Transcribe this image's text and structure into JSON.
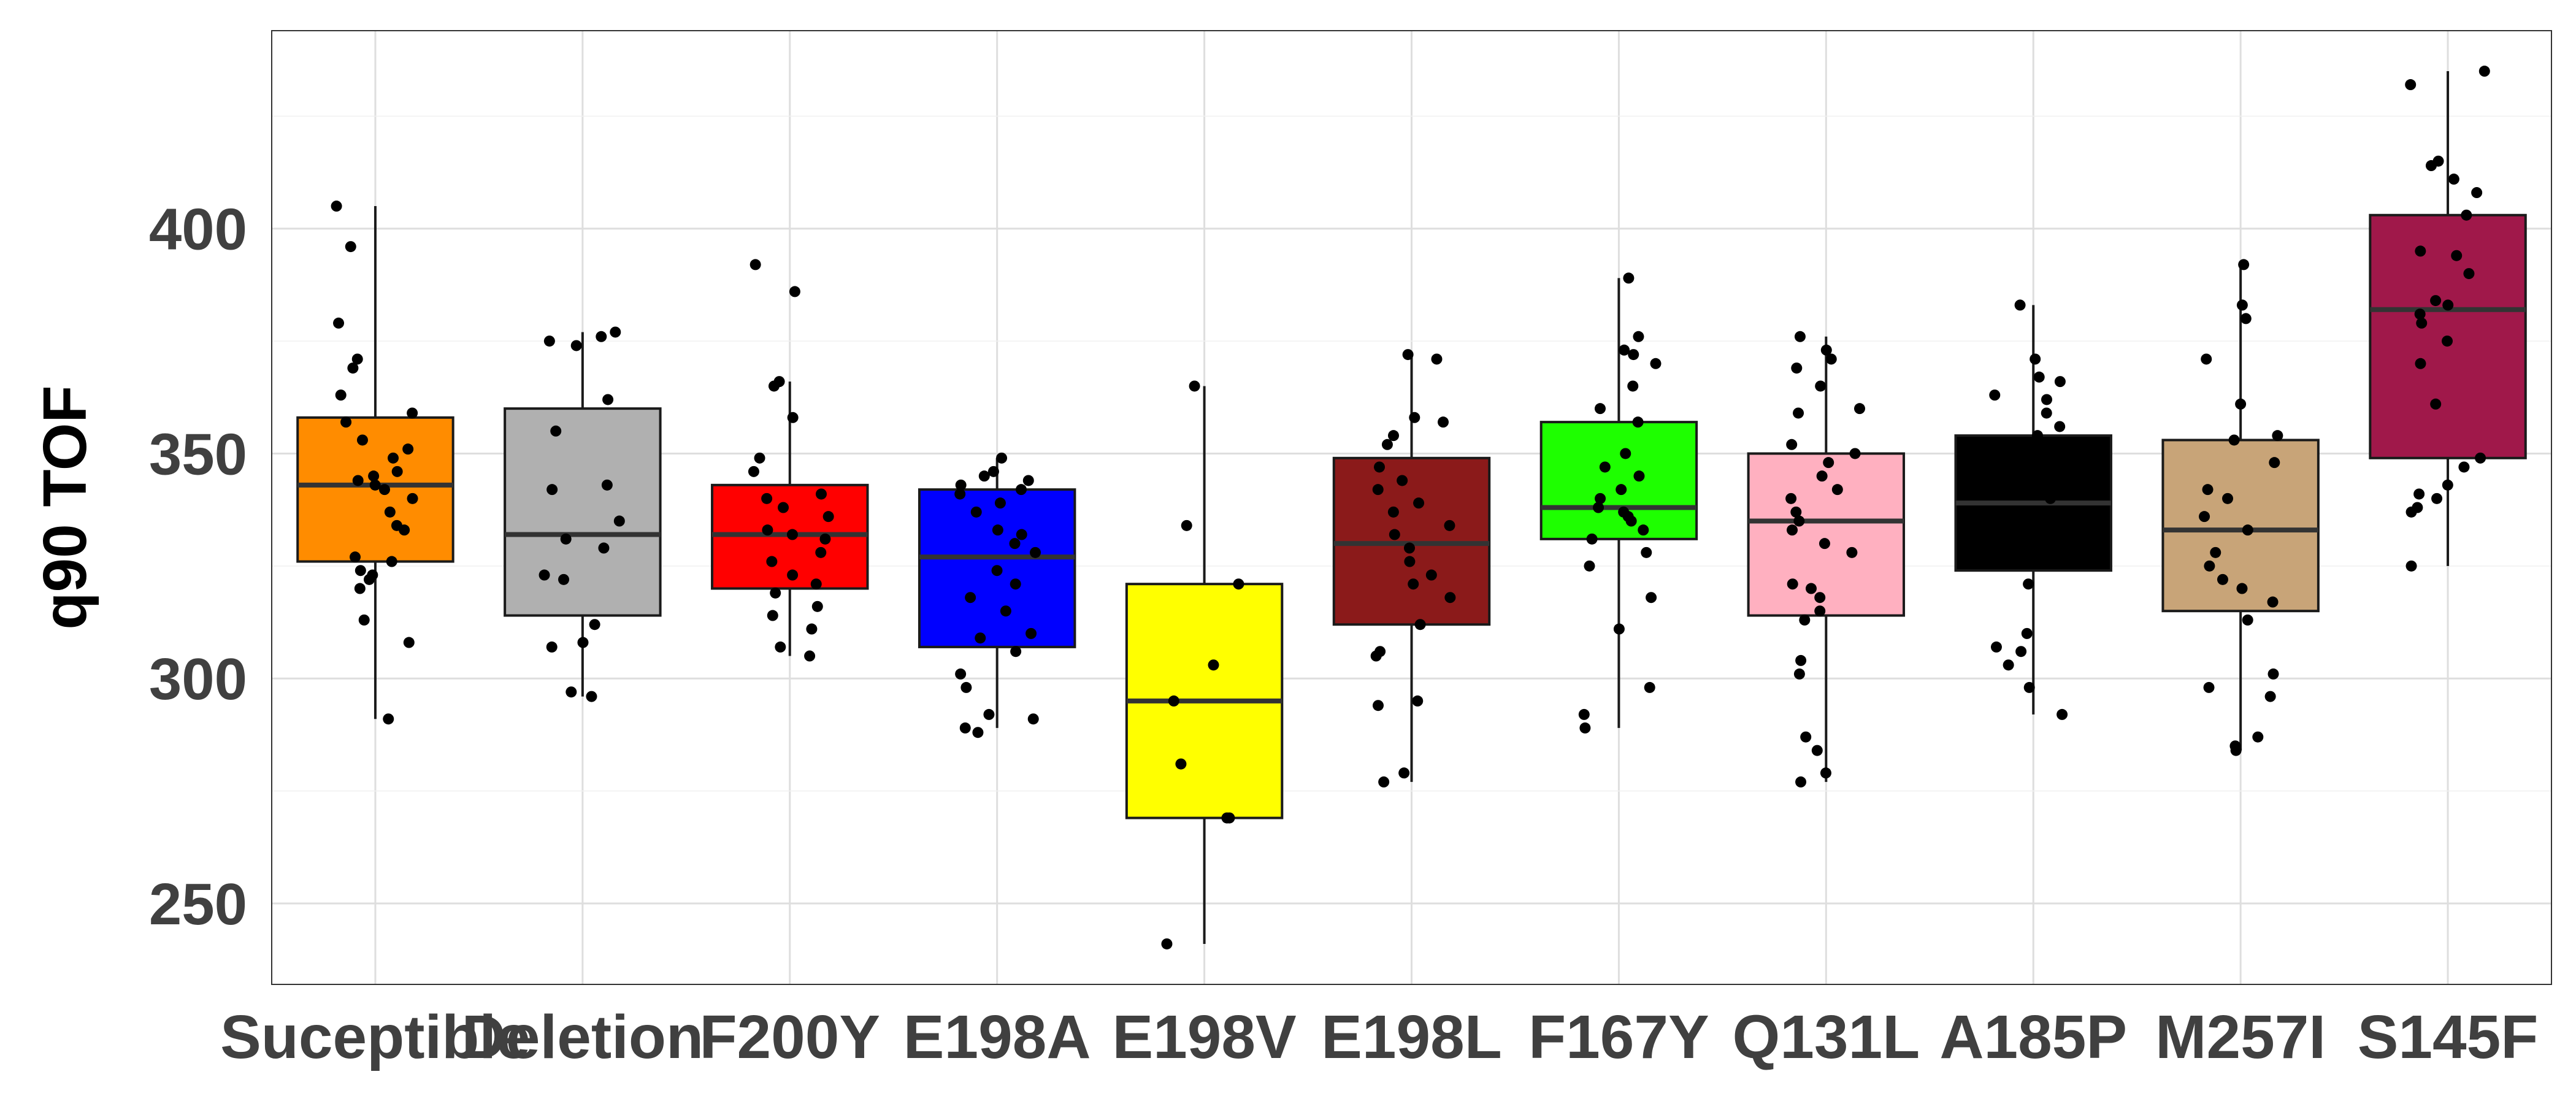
{
  "chart_data": {
    "type": "box",
    "ylabel": "q90 TOF",
    "xlabel": "",
    "ylim": [
      232,
      444
    ],
    "yticks": [
      250,
      300,
      350,
      400
    ],
    "grid": true,
    "legend": "none",
    "categories": [
      "Suceptible",
      "Deletion",
      "F200Y",
      "E198A",
      "E198V",
      "E198L",
      "F167Y",
      "Q131L",
      "A185P",
      "M257I",
      "S145F"
    ],
    "colors": [
      "#FF8C00",
      "#B0B0B0",
      "#FF0000",
      "#0000FF",
      "#FFFF00",
      "#8B1A1A",
      "#1EFF00",
      "#FFB0C0",
      "#000000",
      "#C8A478",
      "#A0184A"
    ],
    "boxes": [
      {
        "min": 291,
        "q1": 326,
        "median": 343,
        "q3": 358,
        "max": 405
      },
      {
        "min": 296,
        "q1": 314,
        "median": 332,
        "q3": 360,
        "max": 377
      },
      {
        "min": 305,
        "q1": 320,
        "median": 332,
        "q3": 343,
        "max": 366
      },
      {
        "min": 289,
        "q1": 307,
        "median": 327,
        "q3": 342,
        "max": 349
      },
      {
        "min": 241,
        "q1": 269,
        "median": 295,
        "q3": 321,
        "max": 365
      },
      {
        "min": 277,
        "q1": 312,
        "median": 330,
        "q3": 349,
        "max": 372
      },
      {
        "min": 289,
        "q1": 331,
        "median": 338,
        "q3": 357,
        "max": 389
      },
      {
        "min": 277,
        "q1": 314,
        "median": 335,
        "q3": 350,
        "max": 376
      },
      {
        "min": 292,
        "q1": 324,
        "median": 339,
        "q3": 354,
        "max": 383
      },
      {
        "min": 284,
        "q1": 315,
        "median": 333,
        "q3": 353,
        "max": 392
      },
      {
        "min": 325,
        "q1": 349,
        "median": 382,
        "q3": 403,
        "max": 435
      }
    ],
    "points": [
      [
        405,
        396,
        379,
        371,
        369,
        363,
        359,
        357,
        353,
        351,
        349,
        346,
        345,
        344,
        343,
        342,
        340,
        337,
        334,
        333,
        327,
        326,
        324,
        323,
        322,
        320,
        313,
        308,
        291
      ],
      [
        377,
        376,
        375,
        374,
        362,
        355,
        343,
        342,
        335,
        331,
        329,
        323,
        322,
        312,
        308,
        307,
        297,
        296
      ],
      [
        392,
        386,
        366,
        365,
        358,
        349,
        346,
        341,
        340,
        338,
        336,
        333,
        332,
        331,
        328,
        326,
        323,
        321,
        319,
        316,
        314,
        311,
        307,
        305
      ],
      [
        349,
        346,
        345,
        344,
        343,
        342,
        341,
        339,
        337,
        333,
        332,
        330,
        328,
        324,
        321,
        318,
        315,
        310,
        309,
        306,
        301,
        298,
        292,
        291,
        289,
        288
      ],
      [
        365,
        334,
        321,
        303,
        295,
        281,
        269,
        269,
        241
      ],
      [
        372,
        371,
        358,
        357,
        354,
        352,
        347,
        344,
        342,
        339,
        337,
        334,
        332,
        329,
        326,
        323,
        321,
        318,
        312,
        306,
        305,
        295,
        294,
        279,
        277
      ],
      [
        389,
        376,
        373,
        372,
        370,
        365,
        360,
        357,
        350,
        347,
        345,
        342,
        340,
        338,
        337,
        336,
        335,
        333,
        331,
        328,
        325,
        318,
        311,
        298,
        292,
        289
      ],
      [
        376,
        373,
        371,
        369,
        365,
        360,
        359,
        352,
        350,
        348,
        345,
        342,
        340,
        337,
        335,
        333,
        330,
        328,
        321,
        320,
        318,
        315,
        313,
        304,
        301,
        287,
        284,
        279,
        277
      ],
      [
        383,
        371,
        367,
        366,
        363,
        362,
        359,
        356,
        354,
        350,
        340,
        328,
        326,
        321,
        310,
        307,
        306,
        303,
        298,
        292
      ],
      [
        392,
        383,
        380,
        371,
        361,
        354,
        353,
        348,
        342,
        340,
        336,
        333,
        328,
        325,
        322,
        320,
        317,
        313,
        301,
        298,
        296,
        287,
        285,
        284
      ],
      [
        435,
        432,
        415,
        414,
        411,
        408,
        403,
        395,
        394,
        390,
        384,
        383,
        381,
        379,
        375,
        370,
        361,
        349,
        347,
        343,
        341,
        340,
        338,
        337,
        325
      ]
    ]
  }
}
